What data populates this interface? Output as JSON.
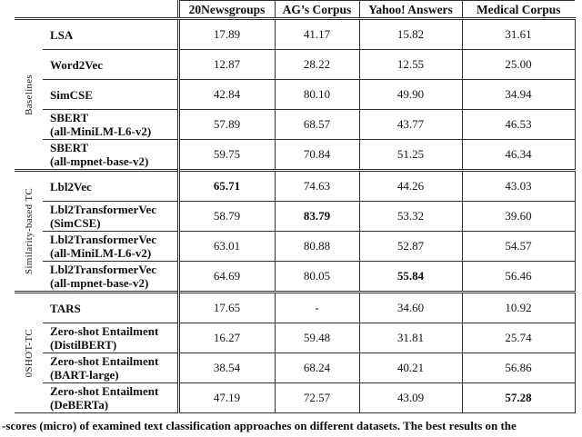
{
  "colors": {
    "background": "#ffffff",
    "text": "#141414",
    "rule": "#2e2e2e"
  },
  "table": {
    "columns": [
      "20Newsgroups",
      "AG’s Corpus",
      "Yahoo! Answers",
      "Medical Corpus"
    ],
    "groups": [
      {
        "label": "Baselines",
        "rows": [
          {
            "name": "LSA",
            "variant": "",
            "values": [
              "17.89",
              "41.17",
              "15.82",
              "31.61"
            ],
            "bold": [
              0,
              0,
              0,
              0
            ]
          },
          {
            "name": "Word2Vec",
            "variant": "",
            "values": [
              "12.87",
              "28.22",
              "12.55",
              "25.00"
            ],
            "bold": [
              0,
              0,
              0,
              0
            ]
          },
          {
            "name": "SimCSE",
            "variant": "",
            "values": [
              "42.84",
              "80.10",
              "49.90",
              "34.94"
            ],
            "bold": [
              0,
              0,
              0,
              0
            ]
          },
          {
            "name": "SBERT",
            "variant": "(all-MiniLM-L6-v2)",
            "values": [
              "57.89",
              "68.57",
              "43.77",
              "46.53"
            ],
            "bold": [
              0,
              0,
              0,
              0
            ]
          },
          {
            "name": "SBERT",
            "variant": "(all-mpnet-base-v2)",
            "values": [
              "59.75",
              "70.84",
              "51.25",
              "46.34"
            ],
            "bold": [
              0,
              0,
              0,
              0
            ]
          }
        ]
      },
      {
        "label": "Similarity-based TC",
        "rows": [
          {
            "name": "Lbl2Vec",
            "variant": "",
            "values": [
              "65.71",
              "74.63",
              "44.26",
              "43.03"
            ],
            "bold": [
              1,
              0,
              0,
              0
            ]
          },
          {
            "name": "Lbl2TransformerVec",
            "variant": "(SimCSE)",
            "values": [
              "58.79",
              "83.79",
              "53.32",
              "39.60"
            ],
            "bold": [
              0,
              1,
              0,
              0
            ]
          },
          {
            "name": "Lbl2TransformerVec",
            "variant": "(all-MiniLM-L6-v2)",
            "values": [
              "63.01",
              "80.88",
              "52.87",
              "54.57"
            ],
            "bold": [
              0,
              0,
              0,
              0
            ]
          },
          {
            "name": "Lbl2TransformerVec",
            "variant": "(all-mpnet-base-v2)",
            "values": [
              "64.69",
              "80.05",
              "55.84",
              "56.46"
            ],
            "bold": [
              0,
              0,
              1,
              0
            ]
          }
        ]
      },
      {
        "label": "0SHOT-TC",
        "rows": [
          {
            "name": "TARS",
            "variant": "",
            "values": [
              "17.65",
              "-",
              "34.60",
              "10.92"
            ],
            "bold": [
              0,
              0,
              0,
              0
            ]
          },
          {
            "name": "Zero-shot Entailment",
            "variant": "(DistilBERT)",
            "values": [
              "16.27",
              "59.48",
              "31.81",
              "25.74"
            ],
            "bold": [
              0,
              0,
              0,
              0
            ]
          },
          {
            "name": "Zero-shot Entailment",
            "variant": "(BART-large)",
            "values": [
              "38.54",
              "68.24",
              "40.21",
              "56.86"
            ],
            "bold": [
              0,
              0,
              0,
              0
            ]
          },
          {
            "name": "Zero-shot Entailment",
            "variant": "(DeBERTa)",
            "values": [
              "47.19",
              "72.57",
              "43.09",
              "57.28"
            ],
            "bold": [
              0,
              0,
              0,
              1
            ]
          }
        ]
      }
    ]
  },
  "caption": {
    "text": "-scores (micro) of examined text classification approaches on different datasets. The best results on the"
  }
}
